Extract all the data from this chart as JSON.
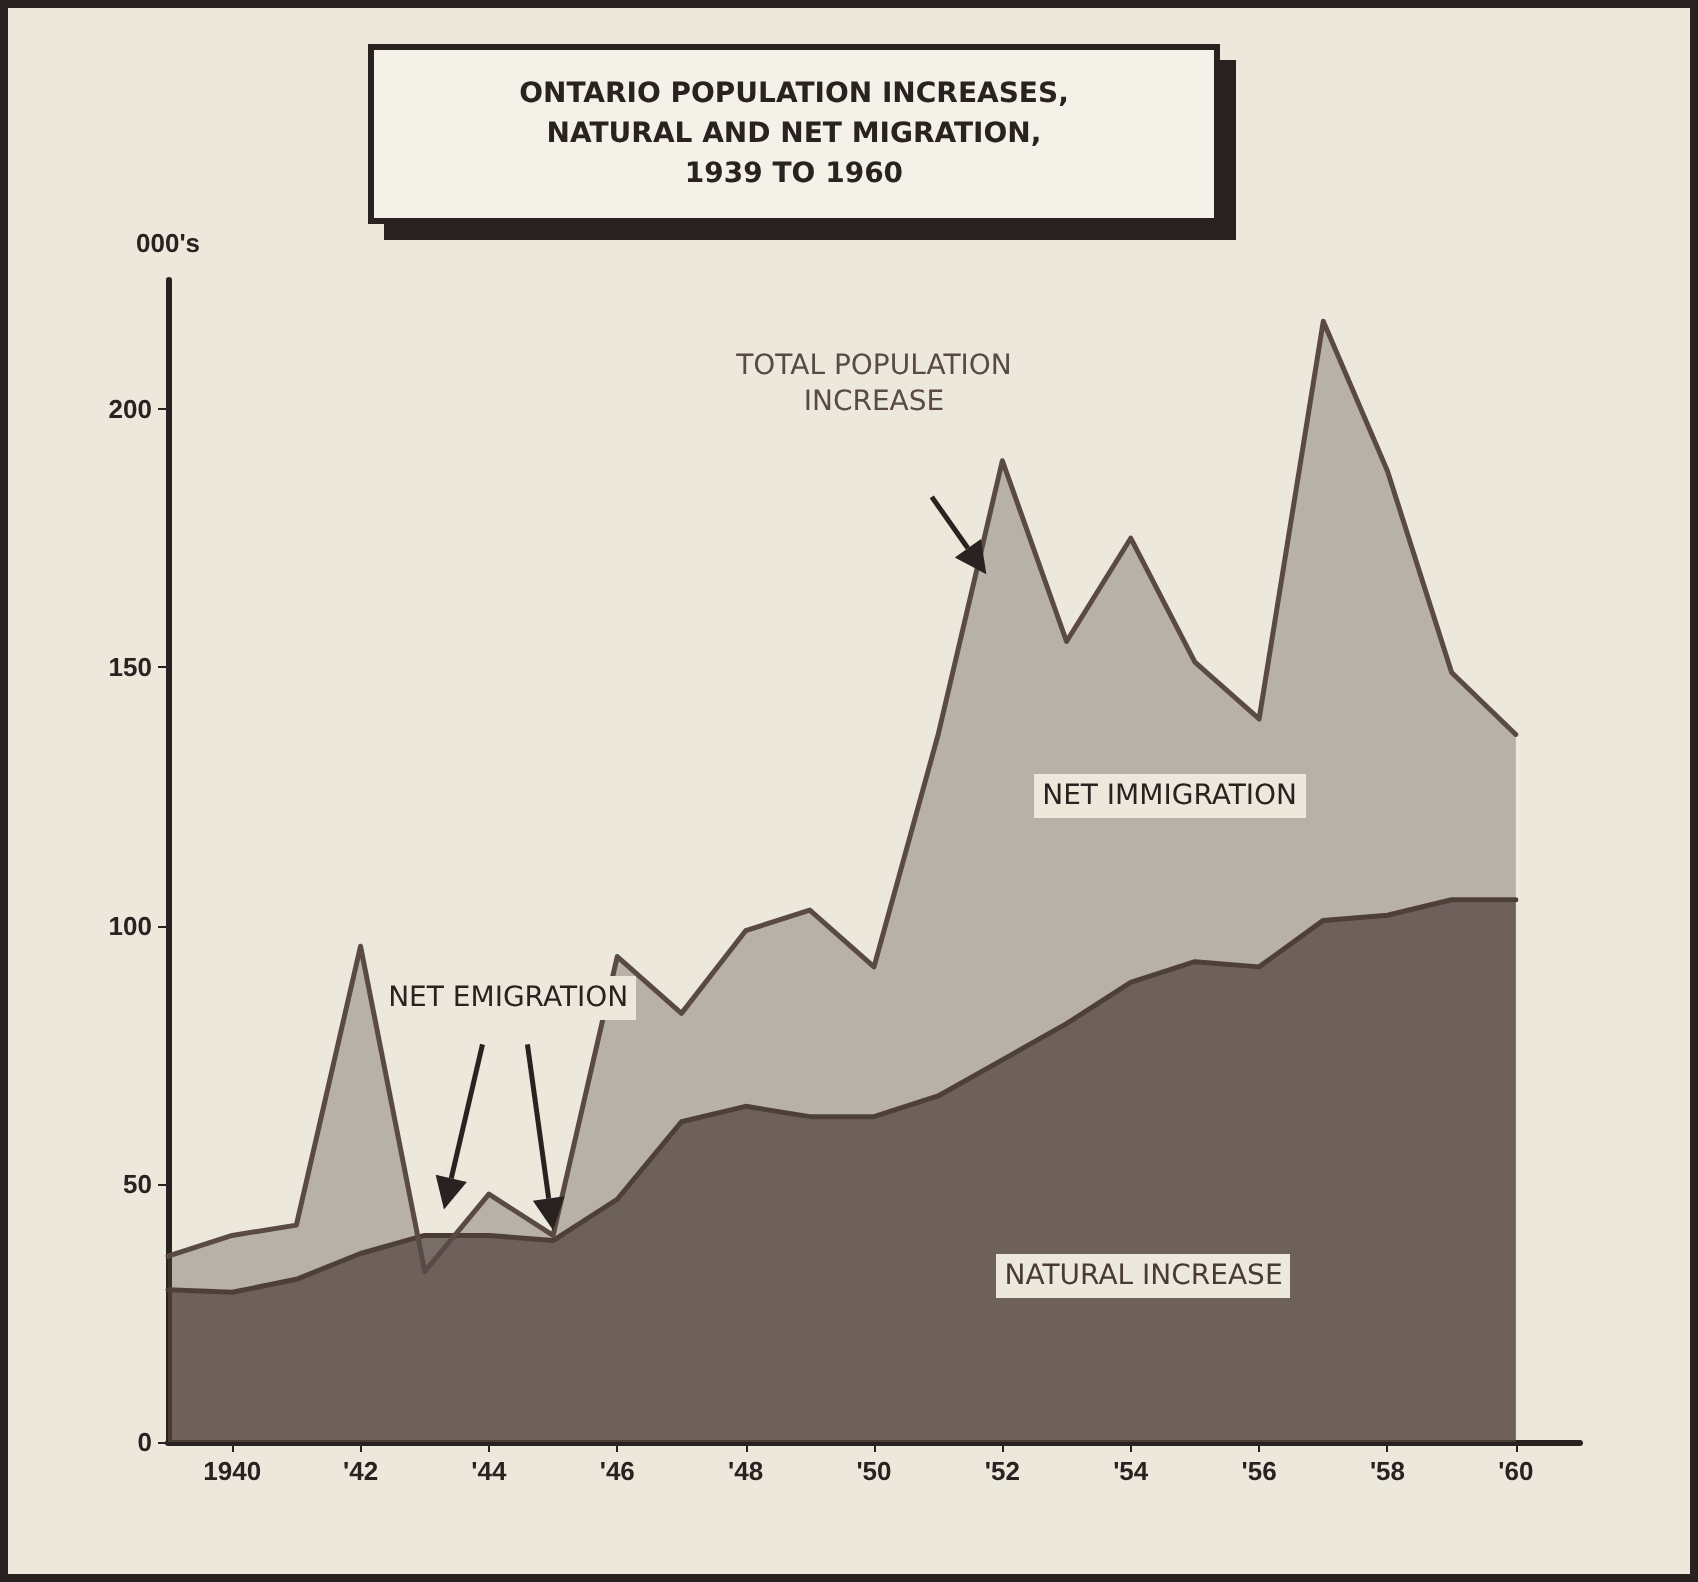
{
  "chart_data": {
    "type": "area",
    "title": "ONTARIO POPULATION INCREASES,\nNATURAL AND NET MIGRATION,\n1939 TO 1960",
    "ylabel": "000's",
    "x": [
      1939,
      1940,
      1941,
      1942,
      1943,
      1944,
      1945,
      1946,
      1947,
      1948,
      1949,
      1950,
      1951,
      1952,
      1953,
      1954,
      1955,
      1956,
      1957,
      1958,
      1959,
      1960
    ],
    "series": [
      {
        "name": "TOTAL POPULATION INCREASE",
        "color": "#5a4a46",
        "values": [
          36,
          40,
          42,
          96,
          33,
          48,
          40,
          94,
          83,
          99,
          103,
          92,
          137,
          190,
          155,
          175,
          151,
          140,
          217,
          188,
          149,
          137
        ]
      },
      {
        "name": "NATURAL INCREASE",
        "color": "#4a3a36",
        "values": [
          29.5,
          29,
          31.5,
          36.5,
          40,
          40,
          39,
          47,
          62,
          65,
          63,
          63,
          67,
          74,
          81,
          89,
          93,
          92,
          101,
          102,
          105,
          105
        ]
      }
    ],
    "annotations": [
      "NET EMIGRATION",
      "NET IMMIGRATION"
    ],
    "xlim": [
      1939,
      1961
    ],
    "xticks": [
      {
        "value": 1940,
        "label": "1940"
      },
      {
        "value": 1942,
        "label": "'42"
      },
      {
        "value": 1944,
        "label": "'44"
      },
      {
        "value": 1946,
        "label": "'46"
      },
      {
        "value": 1948,
        "label": "'48"
      },
      {
        "value": 1950,
        "label": "'50"
      },
      {
        "value": 1952,
        "label": "'52"
      },
      {
        "value": 1954,
        "label": "'54"
      },
      {
        "value": 1956,
        "label": "'56"
      },
      {
        "value": 1958,
        "label": "'58"
      },
      {
        "value": 1960,
        "label": "'60"
      }
    ],
    "ylim": [
      0,
      225
    ],
    "yticks": [
      0,
      50,
      100,
      150,
      200
    ],
    "grid": false,
    "legend": false,
    "marker": "none",
    "line_style": "solid"
  }
}
